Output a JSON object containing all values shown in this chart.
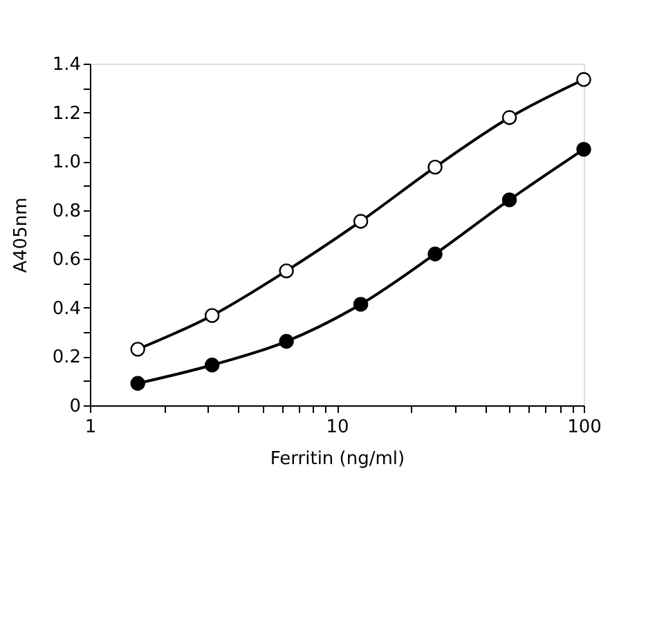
{
  "chart_data": {
    "type": "line",
    "xlabel": "Ferritin  (ng/ml)",
    "ylabel": "A405nm",
    "x": [
      1.5625,
      3.125,
      6.25,
      12.5,
      25,
      50,
      100
    ],
    "series": [
      {
        "color": "#ffffff",
        "values": [
          0.23,
          0.368,
          0.551,
          0.754,
          0.976,
          1.179,
          1.335
        ]
      },
      {
        "color": "#000000",
        "values": [
          0.09,
          0.165,
          0.262,
          0.414,
          0.62,
          0.842,
          1.049
        ]
      }
    ],
    "log": "x",
    "marker": "circle",
    "line_style": "solid",
    "grid": false,
    "xlim": [
      1,
      100
    ],
    "ylim": [
      0,
      1.4
    ],
    "xticks": [
      1,
      {
        "value": 2,
        "label": null
      },
      {
        "value": 3,
        "label": null
      },
      {
        "value": 4,
        "label": null
      },
      {
        "value": 5,
        "label": null
      },
      {
        "value": 6,
        "label": null
      },
      {
        "value": 7,
        "label": null
      },
      {
        "value": 8,
        "label": null
      },
      {
        "value": 9,
        "label": null
      },
      10,
      {
        "value": 20,
        "label": null
      },
      {
        "value": 30,
        "label": null
      },
      {
        "value": 40,
        "label": null
      },
      {
        "value": 50,
        "label": null
      },
      {
        "value": 60,
        "label": null
      },
      {
        "value": 70,
        "label": null
      },
      {
        "value": 80,
        "label": null
      },
      {
        "value": 90,
        "label": null
      },
      100
    ],
    "yticks": [
      {
        "value": 0,
        "label": "0"
      },
      {
        "value": 0.1,
        "label": null
      },
      {
        "value": 0.2,
        "label": "0.2"
      },
      {
        "value": 0.3,
        "label": null
      },
      {
        "value": 0.4,
        "label": "0.4"
      },
      {
        "value": 0.5,
        "label": null
      },
      {
        "value": 0.6,
        "label": "0.6"
      },
      {
        "value": 0.7,
        "label": null
      },
      {
        "value": 0.8,
        "label": "0.8"
      },
      {
        "value": 0.9,
        "label": null
      },
      {
        "value": 1.0,
        "label": "1.0"
      },
      {
        "value": 1.1,
        "label": null
      },
      {
        "value": 1.2,
        "label": "1.2"
      },
      {
        "value": 1.3,
        "label": null
      },
      {
        "value": 1.4,
        "label": "1.4"
      }
    ]
  }
}
